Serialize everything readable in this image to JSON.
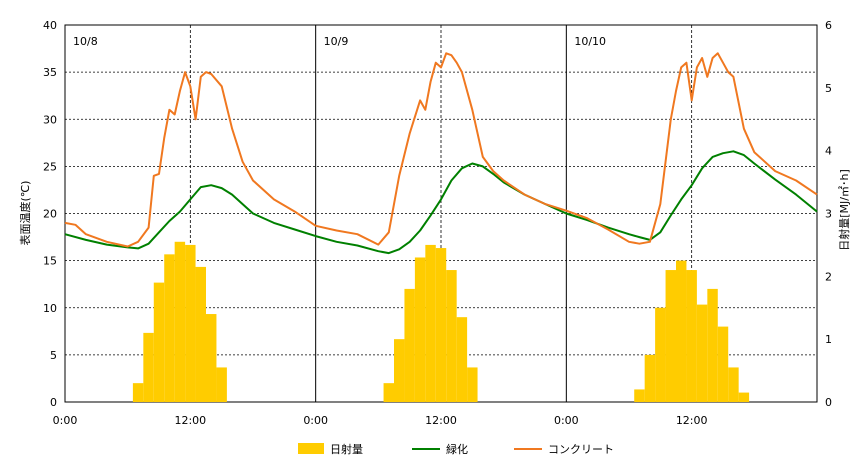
{
  "chart_data": {
    "type": "line",
    "ylabel": "表面温度(℃)",
    "y2label": "日射量[MJ/㎡･h]",
    "ylim": [
      0,
      40
    ],
    "y2lim": [
      0,
      6
    ],
    "yticks": [
      "0",
      "5",
      "10",
      "15",
      "20",
      "25",
      "30",
      "35",
      "40"
    ],
    "y2ticks": [
      "0",
      "1",
      "2",
      "3",
      "4",
      "5",
      "6"
    ],
    "xticks": [
      "0:00",
      "12:00",
      "0:00",
      "12:00",
      "0:00",
      "12:00"
    ],
    "xlim": [
      0,
      72
    ],
    "days": [
      "10/8",
      "10/9",
      "10/10"
    ],
    "grid": true,
    "legend_position": "bottom",
    "series": [
      {
        "name": "日射量",
        "type": "bar",
        "axis": "y2",
        "color": "#ffcc00",
        "x": [
          6,
          7,
          8,
          9,
          10,
          11,
          12,
          13,
          14,
          15,
          16,
          30,
          31,
          32,
          33,
          34,
          35,
          36,
          37,
          38,
          39,
          40,
          54,
          55,
          56,
          57,
          58,
          59,
          60,
          61,
          62,
          63,
          64,
          65,
          66
        ],
        "values": [
          0,
          0.3,
          1.1,
          1.9,
          2.35,
          2.55,
          2.5,
          2.15,
          1.4,
          0.55,
          0,
          0,
          0.3,
          1.0,
          1.8,
          2.3,
          2.5,
          2.45,
          2.1,
          1.35,
          0.55,
          0,
          0,
          0.2,
          0.75,
          1.5,
          2.1,
          2.25,
          2.1,
          1.55,
          1.8,
          1.2,
          0.55,
          0.15,
          0
        ]
      },
      {
        "name": "緑化",
        "type": "line",
        "axis": "y",
        "color": "#008000",
        "x": [
          0,
          2,
          4,
          6,
          7,
          8,
          9,
          10,
          11,
          12,
          13,
          14,
          15,
          16,
          17,
          18,
          20,
          22,
          24,
          26,
          28,
          30,
          31,
          32,
          33,
          34,
          35,
          36,
          37,
          38,
          39,
          40,
          41,
          42,
          44,
          46,
          48,
          50,
          52,
          54,
          55,
          56,
          57,
          58,
          59,
          60,
          61,
          62,
          63,
          64,
          65,
          66,
          68,
          70,
          72
        ],
        "values": [
          17.8,
          17.2,
          16.7,
          16.4,
          16.3,
          16.8,
          18.0,
          19.2,
          20.2,
          21.5,
          22.8,
          23.0,
          22.7,
          22.0,
          21.0,
          20.0,
          19.0,
          18.3,
          17.6,
          17.0,
          16.6,
          16.0,
          15.8,
          16.2,
          17.0,
          18.2,
          19.8,
          21.5,
          23.5,
          24.8,
          25.3,
          25.0,
          24.2,
          23.3,
          22.0,
          21.0,
          20.0,
          19.3,
          18.5,
          17.8,
          17.5,
          17.2,
          18.0,
          19.8,
          21.5,
          23.0,
          24.8,
          26.0,
          26.4,
          26.6,
          26.2,
          25.3,
          23.6,
          22.0,
          20.2
        ]
      },
      {
        "name": "コンクリート",
        "type": "line",
        "axis": "y",
        "color": "#f07820",
        "x": [
          0,
          1,
          2,
          4,
          6,
          7,
          8,
          8.5,
          9,
          9.5,
          10,
          10.5,
          11,
          11.5,
          12,
          12.5,
          13,
          13.5,
          14,
          15,
          16,
          17,
          18,
          20,
          22,
          24,
          26,
          28,
          30,
          31,
          32,
          33,
          34,
          34.5,
          35,
          35.5,
          36,
          36.5,
          37,
          37.5,
          38,
          39,
          40,
          41,
          42,
          44,
          46,
          48,
          50,
          52,
          54,
          55,
          56,
          57,
          58,
          58.5,
          59,
          59.5,
          60,
          60.5,
          61,
          61.5,
          62,
          62.5,
          63,
          63.5,
          64,
          65,
          66,
          68,
          70,
          72
        ],
        "values": [
          19.0,
          18.8,
          17.8,
          17.0,
          16.5,
          17.0,
          18.5,
          24.0,
          24.2,
          28.0,
          31.0,
          30.5,
          33.0,
          35.0,
          33.5,
          30.0,
          34.5,
          35.0,
          34.8,
          33.5,
          29.0,
          25.5,
          23.5,
          21.5,
          20.2,
          18.7,
          18.2,
          17.8,
          16.7,
          18.0,
          24.0,
          28.5,
          32.0,
          31.0,
          34.0,
          36.0,
          35.5,
          37.0,
          36.8,
          36.0,
          35.0,
          31.0,
          26.0,
          24.5,
          23.5,
          22.0,
          21.0,
          20.3,
          19.5,
          18.3,
          17.0,
          16.8,
          17.0,
          21.0,
          30.0,
          33.0,
          35.5,
          36.0,
          32.0,
          35.5,
          36.5,
          34.5,
          36.5,
          37.0,
          36.0,
          35.0,
          34.5,
          29.0,
          26.5,
          24.5,
          23.5,
          22.0
        ]
      }
    ]
  }
}
